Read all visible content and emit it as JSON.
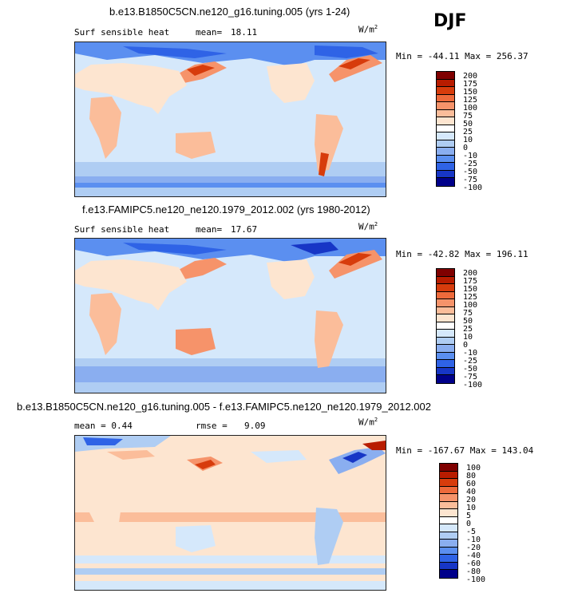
{
  "season": "DJF",
  "units": "W/m",
  "units_sup": "2",
  "panels": [
    {
      "title": "b.e13.B1850C5CN.ne120_g16.tuning.005 (yrs 1-24)",
      "left_label": "Surf sensible heat",
      "stat_label": "mean=",
      "stat_value": "18.11",
      "minmax": "Min = -44.11 Max = 256.37",
      "colorbar": {
        "colors": [
          "#7f0000",
          "#b81c00",
          "#d73c0c",
          "#ee6a3b",
          "#f6936a",
          "#fbbd9a",
          "#fde5d0",
          "#ffffff",
          "#d5e8fb",
          "#afcdf3",
          "#8aaef0",
          "#5b8ff0",
          "#2f63e6",
          "#1736c6",
          "#00008a"
        ],
        "labels": [
          "200",
          "175",
          "150",
          "125",
          "100",
          "75",
          "50",
          "25",
          "10",
          "0",
          "-10",
          "-25",
          "-50",
          "-75",
          "-100"
        ]
      }
    },
    {
      "title": "f.e13.FAMIPC5.ne120_ne120.1979_2012.002 (yrs 1980-2012)",
      "left_label": "Surf sensible heat",
      "stat_label": "mean=",
      "stat_value": "17.67",
      "minmax": "Min = -42.82 Max = 196.11",
      "colorbar": {
        "colors": [
          "#7f0000",
          "#b81c00",
          "#d73c0c",
          "#ee6a3b",
          "#f6936a",
          "#fbbd9a",
          "#fde5d0",
          "#ffffff",
          "#d5e8fb",
          "#afcdf3",
          "#8aaef0",
          "#5b8ff0",
          "#2f63e6",
          "#1736c6",
          "#00008a"
        ],
        "labels": [
          "200",
          "175",
          "150",
          "125",
          "100",
          "75",
          "50",
          "25",
          "10",
          "0",
          "-10",
          "-25",
          "-50",
          "-75",
          "-100"
        ]
      }
    },
    {
      "title": "b.e13.B1850C5CN.ne120_g16.tuning.005 - f.e13.FAMIPC5.ne120_ne120.1979_2012.002",
      "left_label": "mean =   0.44",
      "stat_label": "rmse =",
      "stat_value": "9.09",
      "minmax": "Min = -167.67 Max = 143.04",
      "colorbar": {
        "colors": [
          "#7f0000",
          "#b81c00",
          "#d73c0c",
          "#ee6a3b",
          "#f6936a",
          "#fbbd9a",
          "#fde5d0",
          "#ffffff",
          "#d5e8fb",
          "#afcdf3",
          "#8aaef0",
          "#5b8ff0",
          "#2f63e6",
          "#1736c6",
          "#00008a"
        ],
        "labels": [
          "100",
          "80",
          "60",
          "40",
          "20",
          "10",
          "5",
          "0",
          "-5",
          "-10",
          "-20",
          "-40",
          "-60",
          "-80",
          "-100"
        ]
      }
    }
  ]
}
